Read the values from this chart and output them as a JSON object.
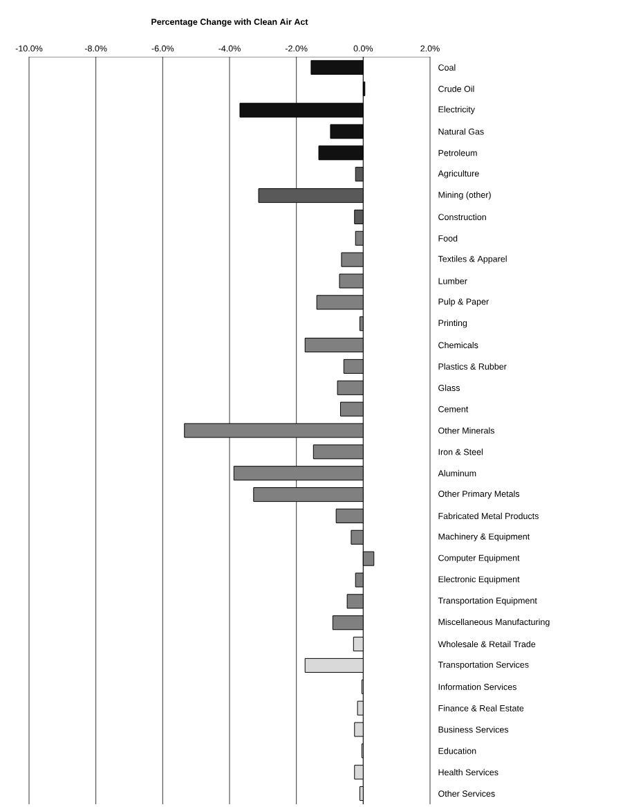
{
  "chart_data": {
    "type": "bar",
    "orientation": "horizontal",
    "title": "Percentage Change with Clean Air Act",
    "categories": [
      "Coal",
      "Crude Oil",
      "Electricity",
      "Natural Gas",
      "Petroleum",
      "Agriculture",
      "Mining (other)",
      "Construction",
      "Food",
      "Textiles & Apparel",
      "Lumber",
      "Pulp & Paper",
      "Printing",
      "Chemicals",
      "Plastics & Rubber",
      "Glass",
      "Cement",
      "Other Minerals",
      "Iron & Steel",
      "Aluminum",
      "Other Primary Metals",
      "Fabricated Metal Products",
      "Machinery & Equipment",
      "Computer Equipment",
      "Electronic Equipment",
      "Transportation Equipment",
      "Miscellaneous Manufacturing",
      "Wholesale & Retail Trade",
      "Transportation Services",
      "Information Services",
      "Finance & Real Estate",
      "Business Services",
      "Education",
      "Health Services",
      "Other Services"
    ],
    "values": [
      -1.56,
      0.05,
      -3.69,
      -0.98,
      -1.33,
      -0.23,
      -3.13,
      -0.26,
      -0.23,
      -0.65,
      -0.71,
      -1.39,
      -0.1,
      -1.74,
      -0.58,
      -0.77,
      -0.68,
      -5.35,
      -1.49,
      -3.87,
      -3.28,
      -0.81,
      -0.36,
      0.32,
      -0.23,
      -0.48,
      -0.91,
      -0.29,
      -1.74,
      -0.04,
      -0.17,
      -0.26,
      -0.04,
      -0.26,
      -0.1
    ],
    "colors": [
      "#111111",
      "#111111",
      "#111111",
      "#111111",
      "#111111",
      "#595959",
      "#595959",
      "#595959",
      "#808080",
      "#808080",
      "#808080",
      "#808080",
      "#808080",
      "#808080",
      "#808080",
      "#808080",
      "#808080",
      "#808080",
      "#808080",
      "#808080",
      "#808080",
      "#808080",
      "#808080",
      "#808080",
      "#808080",
      "#808080",
      "#808080",
      "#d9d9d9",
      "#d9d9d9",
      "#d9d9d9",
      "#d9d9d9",
      "#d9d9d9",
      "#d9d9d9",
      "#d9d9d9",
      "#d9d9d9"
    ],
    "xlim": [
      -10,
      2
    ],
    "xticks": [
      {
        "value": -10,
        "label": "-10.0%"
      },
      {
        "value": -8,
        "label": "-8.0%"
      },
      {
        "value": -6,
        "label": "-6.0%"
      },
      {
        "value": -4,
        "label": "-4.0%"
      },
      {
        "value": -2,
        "label": "-2.0%"
      },
      {
        "value": 0,
        "label": "0.0%"
      },
      {
        "value": 2,
        "label": "2.0%"
      }
    ],
    "grid": "x"
  }
}
